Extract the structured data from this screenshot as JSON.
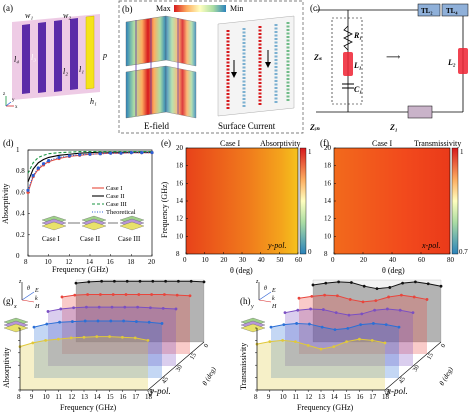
{
  "panels": {
    "a": {
      "label": "(a)",
      "dims": [
        "w₁",
        "w₂",
        "l₄",
        "l₃",
        "l₂",
        "l₁",
        "p",
        "h₁"
      ],
      "axes": [
        "z",
        "y",
        "x"
      ],
      "colors": {
        "substrate": "#e8b9dc",
        "strip_purple": "#5b2ca8",
        "strip_yellow": "#f5e31a"
      }
    },
    "b": {
      "label": "(b)",
      "colorbar_max": "Max",
      "colorbar_min": "Min",
      "caption_left": "E-field",
      "caption_right": "Surface Current"
    },
    "c": {
      "label": "(c)",
      "tl_labels": [
        "TL₂",
        "TL₄"
      ],
      "components": [
        "R₁",
        "L₁",
        "C₁",
        "L₂"
      ],
      "impedances": [
        "Zₛ",
        "Zᵢₙ",
        "Z₁"
      ]
    },
    "d": {
      "label": "(d)",
      "xlabel": "Frequency (GHz)",
      "ylabel": "Absorptivity",
      "cases": [
        "Case I",
        "Case II",
        "Case III"
      ]
    },
    "e": {
      "label": "(e)",
      "title": "Case I",
      "colorbar_title": "Absorptivity",
      "colorbar_ticks": [
        "1",
        "0"
      ],
      "pol": "y-pol.",
      "xlabel": "θ (deg)",
      "ylabel": "Frequency (GHz)"
    },
    "f": {
      "label": "(f)",
      "title": "Case I",
      "colorbar_title": "Transmissivity",
      "colorbar_ticks": [
        "1",
        "0.7"
      ],
      "pol": "x-pol.",
      "xlabel": "θ (deg)"
    },
    "g": {
      "label": "(g)",
      "ylabel": "Absorptivity",
      "xlabel": "Frequency (GHz)",
      "pol": "y-pol.",
      "depth_label": "θ (deg)",
      "depth_ticks": [
        "0",
        "15",
        "30",
        "45",
        "60"
      ],
      "ylim_ticks": [
        "0",
        "0.2",
        "0.4",
        "0.6",
        "0.8",
        "1.0"
      ],
      "axis_labels": [
        "z",
        "E",
        "k",
        "H",
        "x",
        "θ"
      ]
    },
    "h": {
      "label": "(h)",
      "ylabel": "Transmissivity",
      "xlabel": "Frequency (GHz)",
      "pol": "x-pol.",
      "depth_label": "θ (deg)",
      "depth_ticks": [
        "0",
        "15",
        "30",
        "45",
        "60"
      ],
      "ylim_ticks": [
        "0",
        "0.2",
        "0.4",
        "0.6",
        "0.8",
        "1.0"
      ],
      "axis_labels": [
        "z",
        "E",
        "k",
        "H",
        "y",
        "θ"
      ]
    }
  },
  "chart_data": [
    {
      "type": "line",
      "panel": "d",
      "xlabel": "Frequency (GHz)",
      "ylabel": "Absorptivity",
      "xlim": [
        8,
        20
      ],
      "ylim": [
        0,
        1
      ],
      "x_ticks": [
        "8",
        "10",
        "12",
        "14",
        "16",
        "18",
        "20"
      ],
      "y_ticks": [
        "0",
        "0.2",
        "0.4",
        "0.6",
        "0.8",
        "1"
      ],
      "x": [
        8,
        8.5,
        9,
        9.5,
        10,
        11,
        12,
        13,
        14,
        15,
        16,
        17,
        18,
        19,
        20
      ],
      "series": [
        {
          "name": "Case I",
          "color": "#e84c3d",
          "values": [
            0.6,
            0.75,
            0.82,
            0.86,
            0.89,
            0.92,
            0.94,
            0.95,
            0.96,
            0.965,
            0.97,
            0.97,
            0.975,
            0.975,
            0.975
          ]
        },
        {
          "name": "Case II",
          "color": "#000000",
          "values": [
            0.7,
            0.82,
            0.88,
            0.91,
            0.93,
            0.95,
            0.96,
            0.97,
            0.975,
            0.98,
            0.98,
            0.98,
            0.98,
            0.98,
            0.98
          ]
        },
        {
          "name": "Case III",
          "color": "#1a9641",
          "values": [
            0.78,
            0.88,
            0.93,
            0.95,
            0.965,
            0.975,
            0.98,
            0.985,
            0.985,
            0.985,
            0.985,
            0.985,
            0.985,
            0.985,
            0.985
          ]
        },
        {
          "name": "Theoretical",
          "color": "#2c5fd4",
          "values": [
            0.62,
            0.76,
            0.83,
            0.87,
            0.9,
            0.93,
            0.945,
            0.955,
            0.96,
            0.965,
            0.97,
            0.97,
            0.975,
            0.975,
            0.975
          ]
        }
      ]
    },
    {
      "type": "heatmap",
      "panel": "e",
      "title": "Case I",
      "xlabel": "θ (deg)",
      "ylabel": "Frequency (GHz)",
      "xlim": [
        0,
        60
      ],
      "ylim": [
        8,
        20
      ],
      "x_ticks": [
        "0",
        "10",
        "20",
        "30",
        "40",
        "50",
        "60"
      ],
      "y_ticks": [
        "8",
        "10",
        "12",
        "14",
        "16",
        "18",
        "20"
      ],
      "colorbar": [
        0,
        1
      ]
    },
    {
      "type": "heatmap",
      "panel": "f",
      "title": "Case I",
      "xlabel": "θ (deg)",
      "xlim": [
        0,
        80
      ],
      "ylim": [
        8,
        20
      ],
      "x_ticks": [
        "0",
        "20",
        "40",
        "60",
        "80"
      ],
      "y_ticks": [
        "8",
        "10",
        "12",
        "14",
        "16",
        "18",
        "20"
      ],
      "colorbar": [
        0.7,
        1
      ]
    },
    {
      "type": "line",
      "panel": "g",
      "xlabel": "Frequency (GHz)",
      "ylabel": "Absorptivity",
      "x_ticks": [
        "8",
        "9",
        "10",
        "11",
        "12",
        "13",
        "14",
        "15",
        "16",
        "17",
        "18"
      ],
      "x": [
        8,
        9,
        10,
        11,
        12,
        13,
        14,
        15,
        16,
        17,
        18
      ],
      "series": [
        {
          "name": "0",
          "color": "#111111",
          "values": [
            0.95,
            0.97,
            0.98,
            0.98,
            0.98,
            0.98,
            0.98,
            0.98,
            0.98,
            0.98,
            0.97
          ]
        },
        {
          "name": "15",
          "color": "#e8453c",
          "values": [
            0.92,
            0.95,
            0.96,
            0.96,
            0.96,
            0.96,
            0.96,
            0.96,
            0.96,
            0.95,
            0.94
          ]
        },
        {
          "name": "30",
          "color": "#7a4fc2",
          "values": [
            0.88,
            0.92,
            0.94,
            0.95,
            0.95,
            0.95,
            0.95,
            0.95,
            0.94,
            0.93,
            0.92
          ]
        },
        {
          "name": "45",
          "color": "#2b6fd6",
          "values": [
            0.82,
            0.87,
            0.9,
            0.91,
            0.92,
            0.92,
            0.92,
            0.92,
            0.91,
            0.9,
            0.88
          ]
        },
        {
          "name": "60",
          "color": "#e0c83a",
          "values": [
            0.7,
            0.76,
            0.8,
            0.82,
            0.84,
            0.85,
            0.86,
            0.86,
            0.85,
            0.84,
            0.8
          ]
        }
      ]
    },
    {
      "type": "line",
      "panel": "h",
      "xlabel": "Frequency (GHz)",
      "ylabel": "Transmissivity",
      "x_ticks": [
        "8",
        "9",
        "10",
        "11",
        "12",
        "13",
        "14",
        "15",
        "16",
        "17",
        "18"
      ],
      "x": [
        8,
        9,
        10,
        11,
        12,
        13,
        14,
        15,
        16,
        17,
        18
      ],
      "series": [
        {
          "name": "0",
          "color": "#111111",
          "values": [
            0.92,
            0.95,
            0.97,
            0.96,
            0.9,
            0.86,
            0.88,
            0.95,
            0.97,
            0.94,
            0.9
          ]
        },
        {
          "name": "15",
          "color": "#e8453c",
          "values": [
            0.9,
            0.93,
            0.95,
            0.94,
            0.88,
            0.84,
            0.86,
            0.92,
            0.95,
            0.92,
            0.88
          ]
        },
        {
          "name": "30",
          "color": "#7a4fc2",
          "values": [
            0.86,
            0.9,
            0.92,
            0.91,
            0.86,
            0.82,
            0.84,
            0.9,
            0.92,
            0.9,
            0.86
          ]
        },
        {
          "name": "45",
          "color": "#2b6fd6",
          "values": [
            0.82,
            0.86,
            0.88,
            0.87,
            0.82,
            0.78,
            0.8,
            0.86,
            0.88,
            0.86,
            0.82
          ]
        },
        {
          "name": "60",
          "color": "#e0c83a",
          "values": [
            0.74,
            0.78,
            0.8,
            0.78,
            0.72,
            0.66,
            0.7,
            0.78,
            0.82,
            0.8,
            0.76
          ]
        }
      ]
    }
  ]
}
